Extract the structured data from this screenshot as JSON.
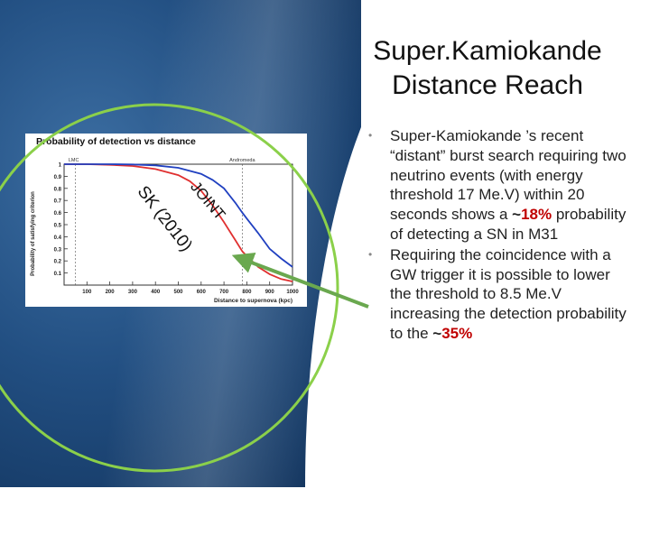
{
  "slide": {
    "title_line1": "Super.Kamiokande",
    "title_line2": "Distance Reach",
    "bullets": [
      {
        "parts": [
          {
            "t": "Super-Kamiokande ’s recent “distant” burst search requiring two neutrino events (with energy threshold 17 Me.V) within 20 seconds shows a "
          },
          {
            "t": "~",
            "b": true
          },
          {
            "t": "18%",
            "hl": true
          },
          {
            "t": " probability of detecting a SN in M31"
          }
        ]
      },
      {
        "parts": [
          {
            "t": "Requiring the coincidence with a GW trigger it is possible to lower the threshold to 8.5 Me.V increasing the detection probability to the "
          },
          {
            "t": "~",
            "b": true
          },
          {
            "t": "35%",
            "hl": true
          }
        ]
      }
    ],
    "bullet_marker": "•",
    "colors": {
      "accent": "#c00000",
      "ring": "#8bd04a",
      "arrow": "#6aa84f",
      "blue_bg": "#224f82"
    }
  },
  "chart_data": {
    "type": "line",
    "title": "Probability of detection vs distance",
    "xlabel": "Distance to supernova (kpc)",
    "ylabel": "Probability of satisfying criterion",
    "xlim": [
      0,
      1000
    ],
    "ylim": [
      0,
      1
    ],
    "xticks": [
      100,
      200,
      300,
      400,
      500,
      600,
      700,
      800,
      900,
      1000
    ],
    "yticks": [
      0.1,
      0.2,
      0.3,
      0.4,
      0.5,
      0.6,
      0.7,
      0.8,
      0.9,
      1
    ],
    "markers": [
      {
        "label": "LMC",
        "x": 50
      },
      {
        "label": "Andromeda",
        "x": 780
      }
    ],
    "annotations": [
      "SK (2010)",
      "JOINT"
    ],
    "series": [
      {
        "color": "#e03030",
        "x": [
          0,
          100,
          200,
          300,
          400,
          500,
          550,
          600,
          650,
          700,
          750,
          780,
          800,
          850,
          900,
          950,
          1000
        ],
        "y": [
          1,
          1,
          0.995,
          0.985,
          0.96,
          0.91,
          0.86,
          0.78,
          0.66,
          0.52,
          0.37,
          0.28,
          0.24,
          0.15,
          0.09,
          0.05,
          0.03
        ]
      },
      {
        "color": "#2040c0",
        "x": [
          0,
          100,
          200,
          300,
          400,
          500,
          600,
          650,
          700,
          750,
          780,
          800,
          850,
          900,
          950,
          1000
        ],
        "y": [
          1,
          1,
          1,
          0.998,
          0.99,
          0.97,
          0.92,
          0.87,
          0.8,
          0.68,
          0.6,
          0.55,
          0.43,
          0.3,
          0.22,
          0.15
        ]
      }
    ]
  }
}
